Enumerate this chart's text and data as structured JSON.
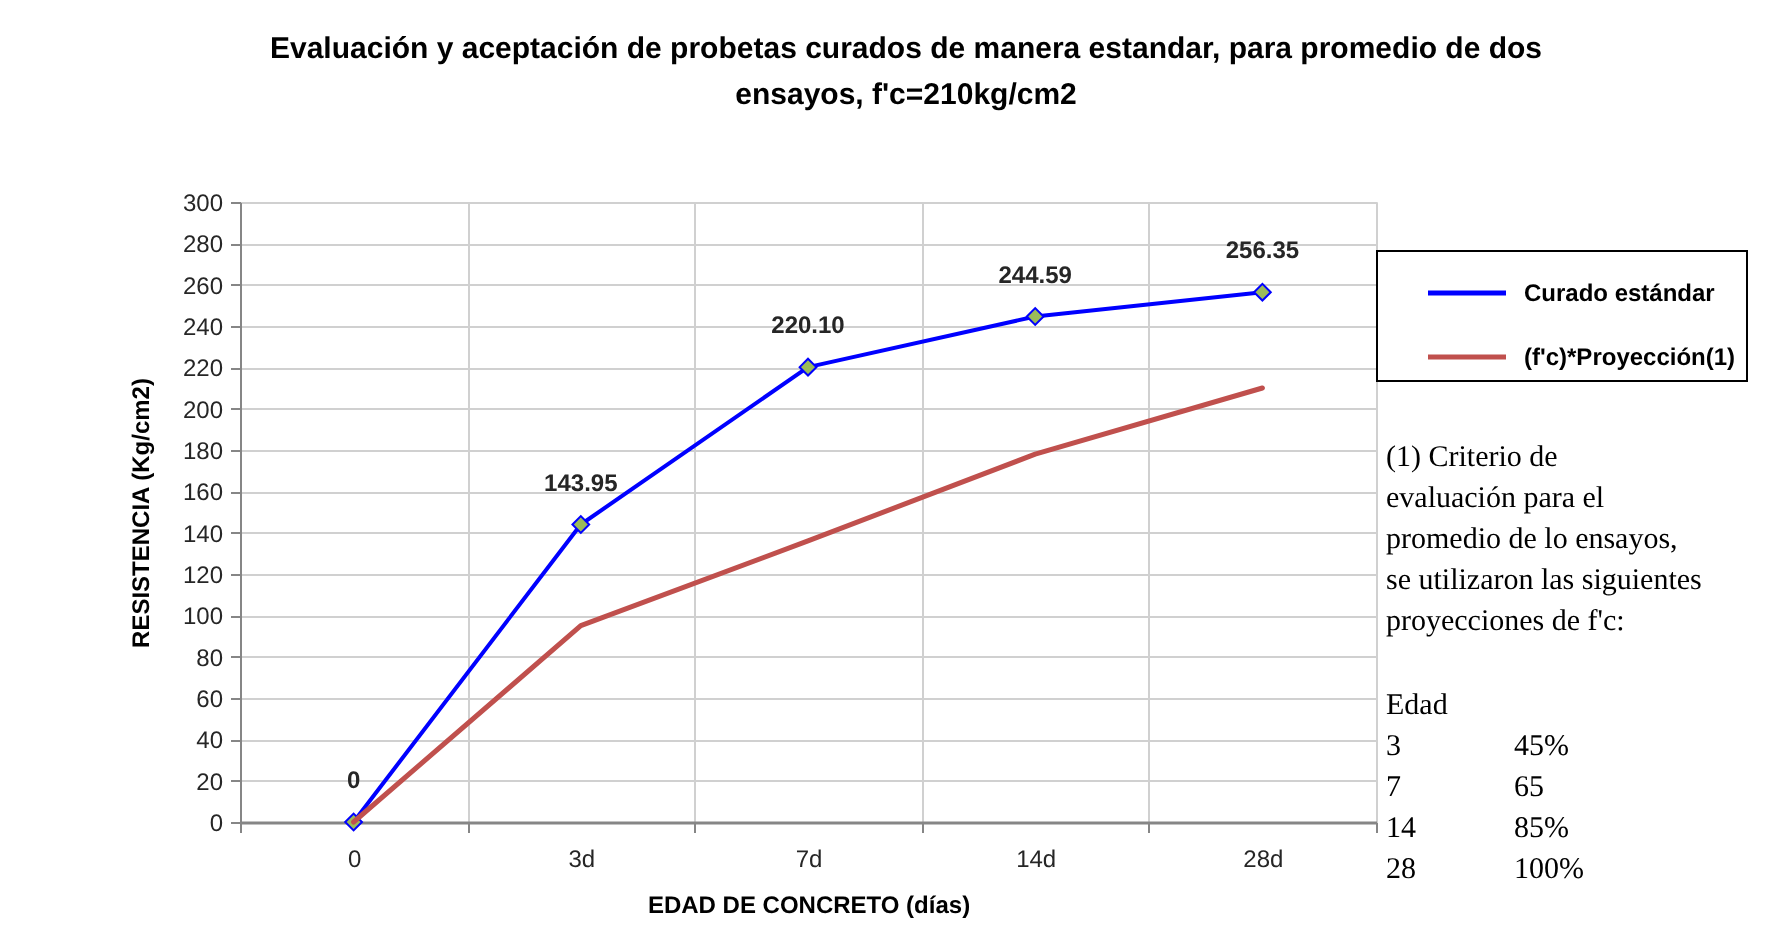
{
  "chart_data": {
    "type": "line",
    "title": "Evaluación y aceptación de probetas curados de manera estandar, para promedio de dos ensayos, f'c=210kg/cm2",
    "xlabel": "EDAD DE CONCRETO (días)",
    "ylabel": "RESISTENCIA (Kg/cm2)",
    "categories": [
      "0",
      "3d",
      "7d",
      "14d",
      "28d"
    ],
    "series": [
      {
        "name": "Curado estándar",
        "color": "#0000ff",
        "marker": "diamond",
        "values": [
          0,
          143.95,
          220.1,
          244.59,
          256.35
        ],
        "value_labels": [
          "0",
          "143.95",
          "220.10",
          "244.59",
          "256.35"
        ]
      },
      {
        "name": "(f'c)*Proyección(1)",
        "color": "#c0504d",
        "marker": "none",
        "values": [
          0,
          95,
          136,
          178,
          210
        ]
      }
    ],
    "ylim": [
      0,
      300
    ],
    "yticks": [
      0,
      20,
      40,
      60,
      80,
      100,
      120,
      140,
      160,
      180,
      200,
      220,
      240,
      260,
      280,
      300
    ],
    "grid": true,
    "legend": "right",
    "annotations": [
      "(1) Criterio de\nevaluación para el\npromedio de lo ensayos,\nse utilizaron las siguientes\nproyecciones de f'c:",
      "Edad\n3\t45%\n7\t65\n14\t85%\n28\t100%"
    ]
  }
}
